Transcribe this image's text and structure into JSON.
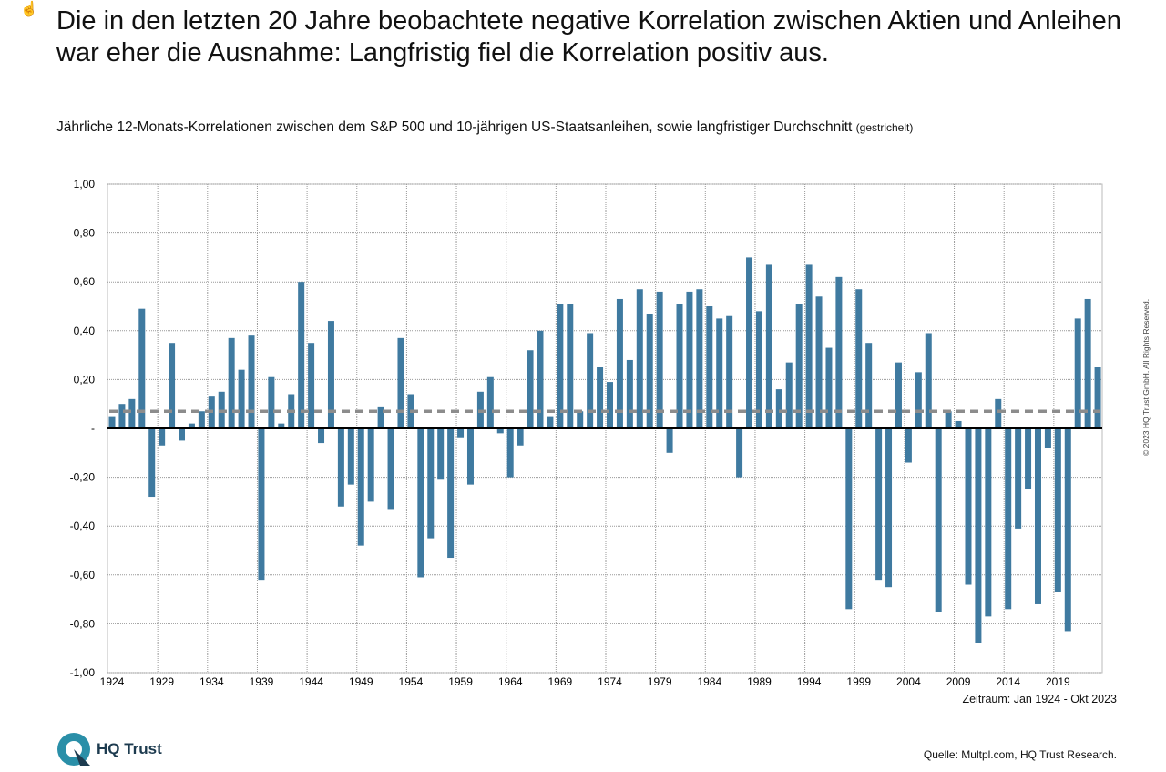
{
  "title": "Die in den letzten 20 Jahre beobachtete negative Korrelation zwischen Aktien und Anleihen war eher die Ausnahme: Langfristig fiel die Korrelation positiv aus.",
  "subtitle": "Jährliche 12-Monats-Korrelationen zwischen dem S&P 500 und 10-jährigen US-Staatsanleihen, sowie langfristiger Durchschnitt",
  "subtitle_note": "(gestrichelt)",
  "period": "Zeitraum: Jan 1924 - Okt 2023",
  "source": "Quelle: Multpl.com, HQ Trust Research.",
  "copyright": "© 2023 HQ Trust GmbH. All Rights Reserved.",
  "logo": {
    "text": "HQ Trust"
  },
  "icons": {
    "cursor": "hand-pointer-icon"
  },
  "colors": {
    "bar": "#3f7aa0",
    "average": "#8c8c8c",
    "zero": "#000000"
  },
  "chart_data": {
    "type": "bar",
    "ylim": [
      -1,
      1
    ],
    "grid": true,
    "y_ticks": [
      1,
      0.8,
      0.6,
      0.4,
      0.2,
      0,
      -0.2,
      -0.4,
      -0.6,
      -0.8,
      -1
    ],
    "y_tick_labels": [
      "1,00",
      "0,80",
      "0,60",
      "0,40",
      "0,20",
      "-",
      "-0,20",
      "-0,40",
      "-0,60",
      "-0,80",
      "-1,00"
    ],
    "x_tick_labels": [
      "1924",
      "1929",
      "1934",
      "1939",
      "1944",
      "1949",
      "1954",
      "1959",
      "1964",
      "1969",
      "1974",
      "1979",
      "1984",
      "1989",
      "1994",
      "1999",
      "2004",
      "2009",
      "2014",
      "2019"
    ],
    "x_start": 1924,
    "average": 0.07,
    "values": [
      0.05,
      0.1,
      0.12,
      0.49,
      -0.28,
      -0.07,
      0.35,
      -0.05,
      0.02,
      0.07,
      0.13,
      0.15,
      0.37,
      0.24,
      0.38,
      -0.62,
      0.21,
      0.02,
      0.14,
      0.6,
      0.35,
      -0.06,
      0.44,
      -0.32,
      -0.23,
      -0.48,
      -0.3,
      0.09,
      -0.33,
      0.37,
      0.14,
      -0.61,
      -0.45,
      -0.21,
      -0.53,
      -0.04,
      -0.23,
      0.15,
      0.21,
      -0.02,
      -0.2,
      -0.07,
      0.32,
      0.4,
      0.05,
      0.51,
      0.51,
      0.07,
      0.39,
      0.25,
      0.19,
      0.53,
      0.28,
      0.57,
      0.47,
      0.56,
      -0.1,
      0.51,
      0.56,
      0.57,
      0.5,
      0.45,
      0.46,
      -0.2,
      0.7,
      0.48,
      0.67,
      0.16,
      0.27,
      0.51,
      0.67,
      0.54,
      0.33,
      0.62,
      -0.74,
      0.57,
      0.35,
      -0.62,
      -0.65,
      0.27,
      -0.14,
      0.23,
      0.39,
      -0.75,
      0.07,
      0.03,
      -0.64,
      -0.88,
      -0.77,
      0.12,
      -0.74,
      -0.41,
      -0.25,
      -0.72,
      -0.08,
      -0.67,
      -0.83,
      0.45,
      0.53,
      0.25
    ]
  }
}
